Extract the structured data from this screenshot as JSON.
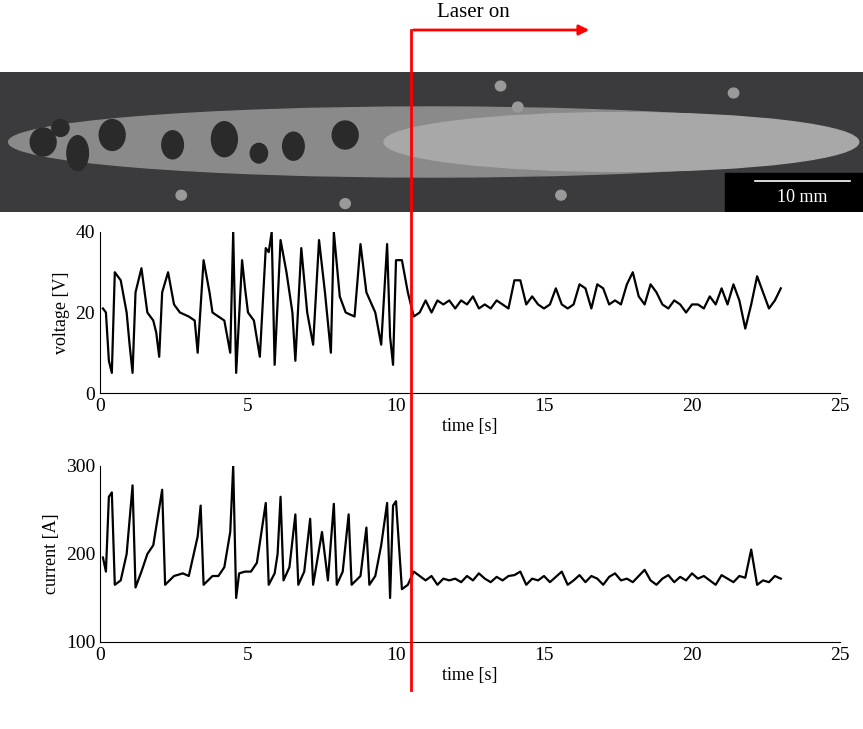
{
  "image": {
    "scale_bar": "10 mm"
  },
  "chart_data": [
    {
      "type": "line",
      "ylabel": "voltage [V]",
      "xlabel": "time [s]",
      "color": "#000000",
      "xlim": [
        0,
        25
      ],
      "xticks": [
        0,
        5,
        10,
        15,
        20,
        25
      ],
      "ylim": [
        0,
        40
      ],
      "yticks": [
        0,
        20,
        40
      ],
      "annotations": [
        {
          "text": "Laser on",
          "x": 10.5
        }
      ],
      "x": [
        0.1,
        0.2,
        0.3,
        0.4,
        0.5,
        0.7,
        0.9,
        1.0,
        1.1,
        1.2,
        1.4,
        1.6,
        1.8,
        1.9,
        2.0,
        2.1,
        2.3,
        2.5,
        2.7,
        3.0,
        3.2,
        3.3,
        3.5,
        3.7,
        3.8,
        4.0,
        4.2,
        4.4,
        4.5,
        4.6,
        4.8,
        4.9,
        5.0,
        5.2,
        5.4,
        5.6,
        5.7,
        5.8,
        5.9,
        6.1,
        6.3,
        6.5,
        6.6,
        6.8,
        7.0,
        7.2,
        7.4,
        7.6,
        7.8,
        7.9,
        8.1,
        8.3,
        8.6,
        8.8,
        9.0,
        9.3,
        9.5,
        9.7,
        9.8,
        9.9,
        10.0,
        10.2,
        10.4,
        10.6,
        10.8,
        11.0,
        11.2,
        11.4,
        11.6,
        11.8,
        12.0,
        12.2,
        12.4,
        12.6,
        12.8,
        13.0,
        13.2,
        13.4,
        13.6,
        13.8,
        14.0,
        14.2,
        14.4,
        14.6,
        14.8,
        15.0,
        15.2,
        15.4,
        15.6,
        15.8,
        16.0,
        16.2,
        16.4,
        16.6,
        16.8,
        17.0,
        17.2,
        17.4,
        17.6,
        17.8,
        18.0,
        18.2,
        18.4,
        18.6,
        18.8,
        19.0,
        19.2,
        19.4,
        19.6,
        19.8,
        20.0,
        20.2,
        20.4,
        20.6,
        20.8,
        21.0,
        21.2,
        21.4,
        21.6,
        21.8,
        22.0,
        22.2,
        22.4,
        22.6,
        22.8,
        23.0
      ],
      "values": [
        21,
        20,
        8,
        5,
        30,
        28,
        20,
        12,
        5,
        25,
        31,
        20,
        18,
        15,
        9,
        25,
        30,
        22,
        20,
        19,
        18,
        10,
        33,
        25,
        20,
        19,
        18,
        10,
        40,
        5,
        33,
        26,
        20,
        18,
        9,
        36,
        35,
        40,
        7,
        38,
        30,
        20,
        8,
        36,
        20,
        12,
        38,
        25,
        10,
        40,
        24,
        20,
        19,
        37,
        25,
        20,
        12,
        37,
        14,
        7,
        33,
        33,
        25,
        19,
        20,
        23,
        20,
        23,
        22,
        23,
        21,
        23,
        22,
        24,
        21,
        22,
        21,
        23,
        22,
        21,
        28,
        28,
        22,
        24,
        22,
        21,
        22,
        26,
        22,
        21,
        22,
        27,
        26,
        21,
        27,
        26,
        22,
        23,
        22,
        27,
        30,
        24,
        22,
        27,
        25,
        22,
        21,
        23,
        22,
        20,
        22,
        22,
        21,
        24,
        22,
        26,
        22,
        27,
        23,
        16,
        22,
        29,
        25,
        21,
        23,
        26
      ]
    },
    {
      "type": "line",
      "ylabel": "current [A]",
      "xlabel": "time [s]",
      "color": "#000000",
      "xlim": [
        0,
        25
      ],
      "xticks": [
        0,
        5,
        10,
        15,
        20,
        25
      ],
      "ylim": [
        100,
        300
      ],
      "yticks": [
        100,
        200,
        300
      ],
      "x": [
        0.1,
        0.2,
        0.3,
        0.4,
        0.5,
        0.7,
        0.9,
        1.1,
        1.2,
        1.4,
        1.6,
        1.8,
        2.1,
        2.2,
        2.5,
        2.8,
        3.0,
        3.3,
        3.4,
        3.5,
        3.8,
        4.0,
        4.2,
        4.4,
        4.5,
        4.6,
        4.7,
        4.9,
        5.1,
        5.3,
        5.6,
        5.7,
        5.9,
        6.0,
        6.1,
        6.2,
        6.4,
        6.6,
        6.7,
        6.9,
        7.1,
        7.2,
        7.5,
        7.7,
        7.9,
        8.0,
        8.2,
        8.4,
        8.5,
        8.8,
        9.0,
        9.1,
        9.3,
        9.5,
        9.7,
        9.8,
        9.9,
        10.0,
        10.2,
        10.4,
        10.6,
        10.8,
        11.0,
        11.2,
        11.4,
        11.6,
        11.8,
        12.0,
        12.2,
        12.4,
        12.6,
        12.8,
        13.0,
        13.2,
        13.4,
        13.6,
        13.8,
        14.0,
        14.2,
        14.4,
        14.6,
        14.8,
        15.0,
        15.2,
        15.4,
        15.6,
        15.8,
        16.0,
        16.2,
        16.4,
        16.6,
        16.8,
        17.0,
        17.2,
        17.4,
        17.6,
        17.8,
        18.0,
        18.2,
        18.4,
        18.6,
        18.8,
        19.0,
        19.2,
        19.4,
        19.6,
        19.8,
        20.0,
        20.2,
        20.4,
        20.6,
        20.8,
        21.0,
        21.2,
        21.4,
        21.6,
        21.8,
        22.0,
        22.2,
        22.4,
        22.6,
        22.8,
        23.0
      ],
      "values": [
        196,
        180,
        265,
        270,
        165,
        170,
        200,
        278,
        162,
        180,
        200,
        210,
        273,
        165,
        175,
        178,
        175,
        220,
        255,
        165,
        175,
        175,
        185,
        225,
        300,
        150,
        178,
        180,
        180,
        190,
        258,
        165,
        178,
        200,
        265,
        170,
        185,
        245,
        165,
        180,
        240,
        165,
        225,
        170,
        257,
        165,
        180,
        245,
        165,
        175,
        230,
        165,
        175,
        210,
        258,
        150,
        255,
        260,
        160,
        165,
        180,
        175,
        170,
        175,
        165,
        172,
        170,
        172,
        168,
        175,
        170,
        178,
        172,
        168,
        174,
        170,
        175,
        176,
        180,
        165,
        172,
        170,
        175,
        168,
        174,
        180,
        165,
        170,
        176,
        168,
        175,
        172,
        165,
        174,
        178,
        170,
        172,
        168,
        175,
        182,
        170,
        165,
        172,
        176,
        168,
        174,
        170,
        178,
        172,
        175,
        170,
        165,
        176,
        172,
        168,
        175,
        173,
        205,
        165,
        170,
        168,
        175,
        172
      ]
    }
  ]
}
